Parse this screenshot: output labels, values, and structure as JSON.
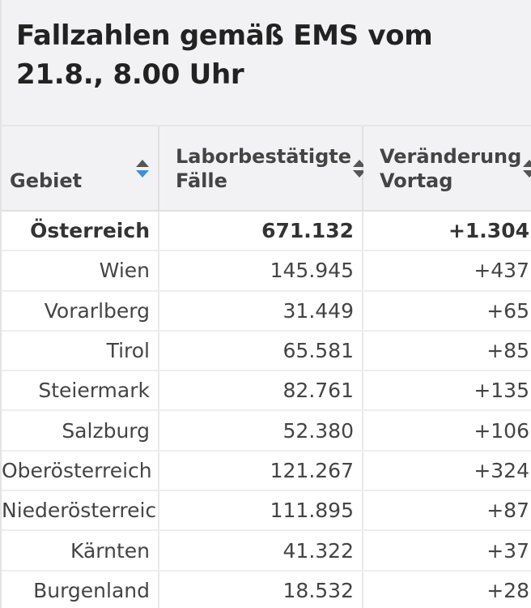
{
  "title": "Fallzahlen gemäß EMS vom 21.8., 8.00 Uhr",
  "table": {
    "headers": [
      {
        "label": "Gebiet",
        "sort": "descending"
      },
      {
        "label": "Laborbestätigte Fälle",
        "sort": "none"
      },
      {
        "label": "Veränderung Vortag",
        "sort": "none"
      }
    ],
    "rows": [
      {
        "gebiet": "Österreich",
        "faelle": "671.132",
        "veraenderung": "+1.304",
        "is_total": true
      },
      {
        "gebiet": "Wien",
        "faelle": "145.945",
        "veraenderung": "+437"
      },
      {
        "gebiet": "Vorarlberg",
        "faelle": "31.449",
        "veraenderung": "+65"
      },
      {
        "gebiet": "Tirol",
        "faelle": "65.581",
        "veraenderung": "+85"
      },
      {
        "gebiet": "Steiermark",
        "faelle": "82.761",
        "veraenderung": "+135"
      },
      {
        "gebiet": "Salzburg",
        "faelle": "52.380",
        "veraenderung": "+106"
      },
      {
        "gebiet": "Oberösterreich",
        "faelle": "121.267",
        "veraenderung": "+324"
      },
      {
        "gebiet": "Niederösterreich",
        "faelle": "111.895",
        "veraenderung": "+87"
      },
      {
        "gebiet": "Kärnten",
        "faelle": "41.322",
        "veraenderung": "+37"
      },
      {
        "gebiet": "Burgenland",
        "faelle": "18.532",
        "veraenderung": "+28"
      }
    ]
  },
  "colors": {
    "sort_active": "#3d8fd6",
    "sort_inactive": "#555555",
    "header_bg": "#f2f2f4"
  }
}
